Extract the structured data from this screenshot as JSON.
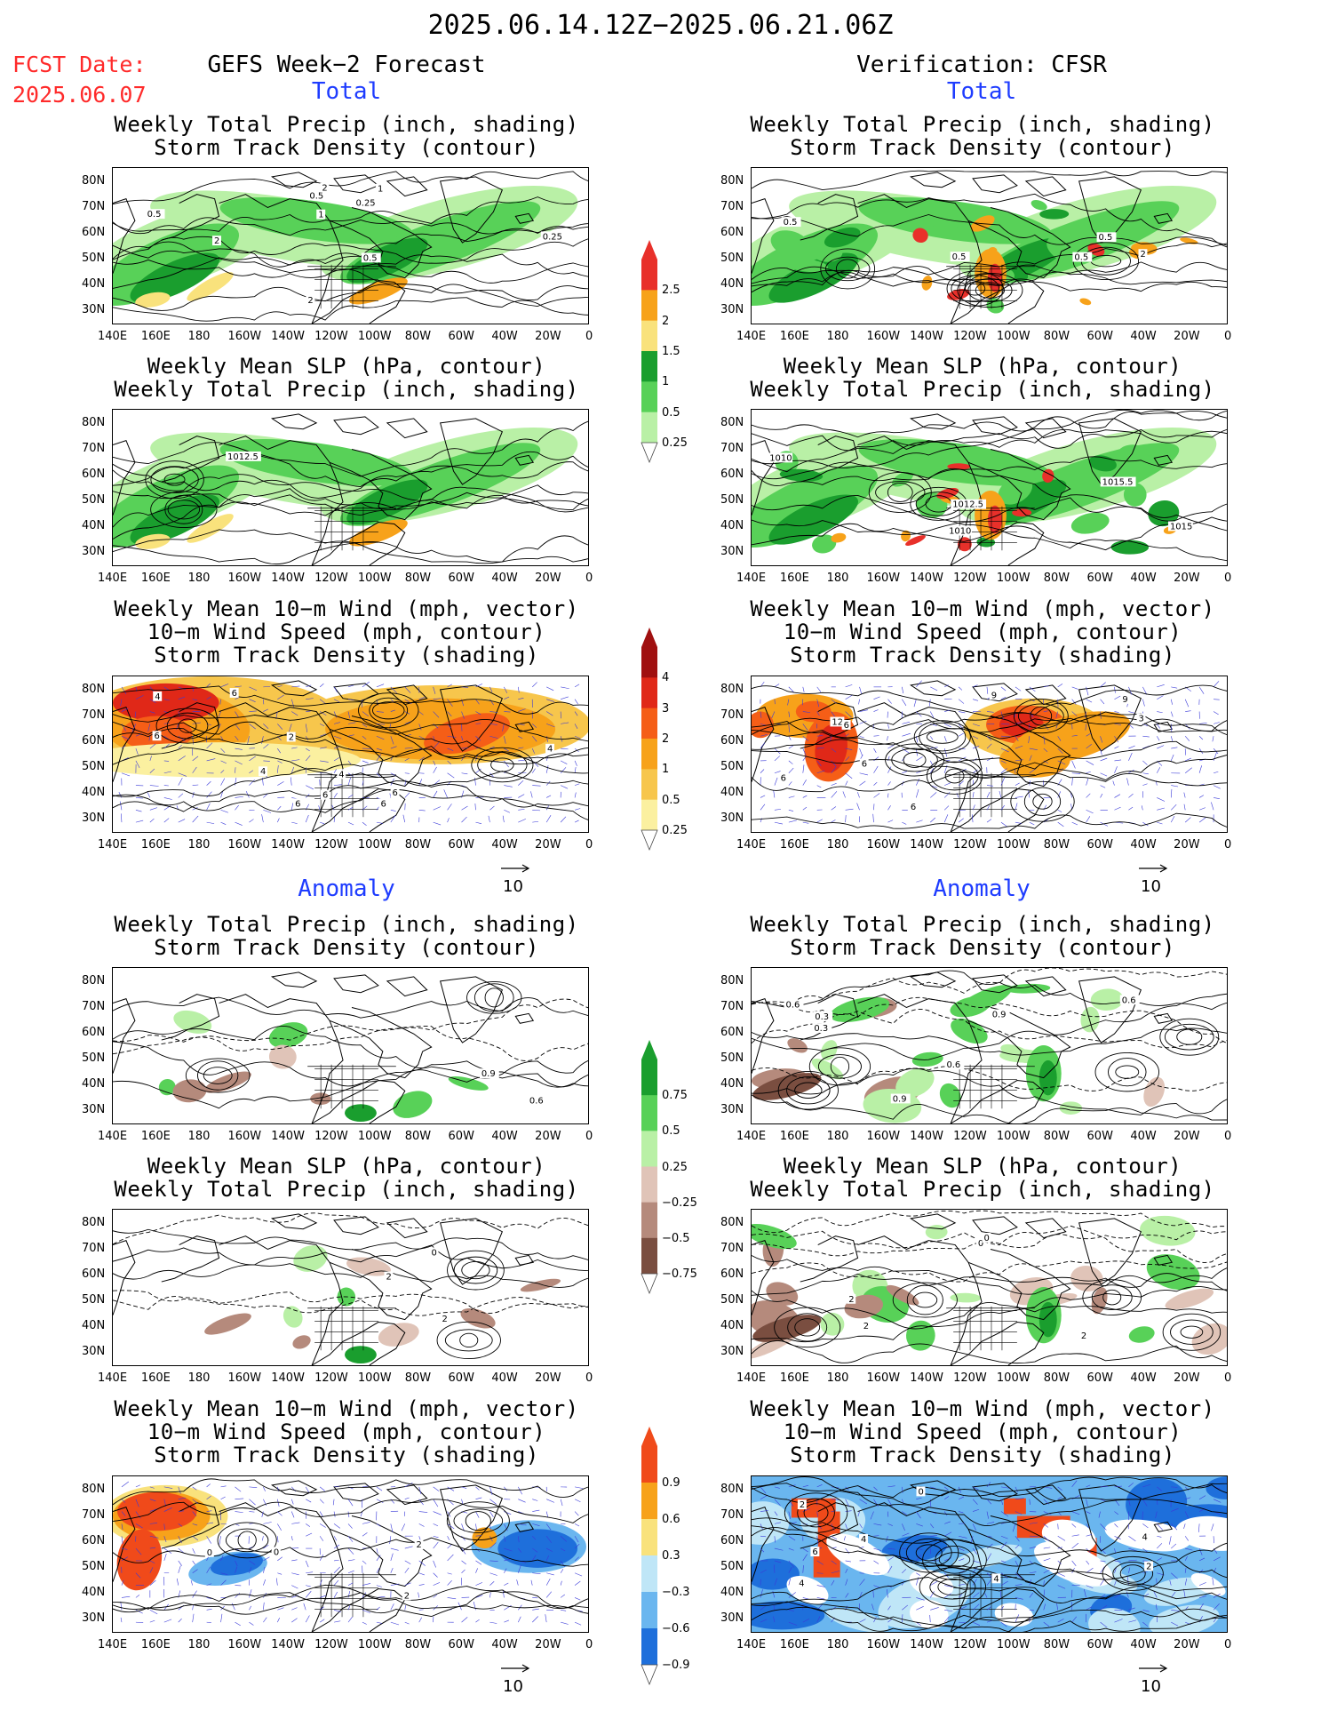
{
  "header": {
    "date_range": "2025.06.14.12Z−2025.06.21.06Z",
    "fcst_label": "FCST Date:",
    "fcst_date": "2025.06.07",
    "left_title": "GEFS Week−2 Forecast",
    "right_title": "Verification: CFSR"
  },
  "sections": {
    "total": "Total",
    "anomaly": "Anomaly"
  },
  "titles": {
    "precip_storm": [
      "Weekly Total Precip (inch, shading)",
      "Storm Track Density (contour)"
    ],
    "slp_precip": [
      "Weekly Mean SLP (hPa, contour)",
      "Weekly Total Precip (inch, shading)"
    ],
    "wind": [
      "Weekly Mean 10−m Wind (mph, vector)",
      "10−m Wind Speed (mph, contour)",
      "Storm Track Density (shading)"
    ]
  },
  "axes": {
    "lat_labels": [
      "80N",
      "70N",
      "60N",
      "50N",
      "40N",
      "30N"
    ],
    "lon_labels": [
      "140E",
      "160E",
      "180",
      "160W",
      "140W",
      "120W",
      "100W",
      "80W",
      "60W",
      "40W",
      "20W",
      "0"
    ]
  },
  "vector_ref": "10",
  "colorbars": {
    "precip_total": {
      "labels": [
        "2.5",
        "2",
        "1.5",
        "1",
        "0.5",
        "0.25"
      ],
      "colors": [
        "#e8302a",
        "#f7a21a",
        "#f9e27c",
        "#1a9e2e",
        "#58d158",
        "#b9f0a6"
      ]
    },
    "storm_total": {
      "labels": [
        "4",
        "3",
        "2",
        "1",
        "0.5",
        "0.25"
      ],
      "colors": [
        "#a01010",
        "#e02818",
        "#f55e17",
        "#f7a21a",
        "#f7c64c",
        "#fbf0a0"
      ]
    },
    "precip_anom": {
      "labels": [
        "0.75",
        "0.5",
        "0.25",
        "−0.25",
        "−0.5",
        "−0.75"
      ],
      "colors": [
        "#1a9e2e",
        "#58d158",
        "#b9f0a6",
        "#e0c4b8",
        "#b58a7c",
        "#7a4e40"
      ]
    },
    "storm_anom": {
      "labels": [
        "0.9",
        "0.6",
        "0.3",
        "−0.3",
        "−0.6",
        "−0.9"
      ],
      "colors": [
        "#f04a1a",
        "#f7a21a",
        "#f9e27c",
        "#bfe6f7",
        "#6ab6ef",
        "#1e6fdb"
      ]
    }
  },
  "contour_labels": {
    "p1": [
      "0.5",
      "1",
      "2",
      "0.25",
      "0.5",
      "2",
      "0.25",
      "2",
      "1",
      "0.5"
    ],
    "p2": [
      "0.5",
      "0.5",
      "0.5",
      "2",
      "0.5"
    ],
    "p3": [
      "1012.5"
    ],
    "p4": [
      "1010",
      "1015",
      "1010",
      "1015.5",
      "1012.5"
    ],
    "p5": [
      "2",
      "6",
      "4",
      "6",
      "6",
      "6",
      "4",
      "4",
      "6",
      "6",
      "4"
    ],
    "p6": [
      "6",
      "9",
      "12",
      "6",
      "3",
      "9",
      "6",
      "6"
    ],
    "p7": [
      "0.9",
      "0.6"
    ],
    "p8": [
      "0.6",
      "0.6",
      "0.3",
      "0.6",
      "0.9",
      "0.9",
      "0.3"
    ],
    "p9": [
      "2",
      "2",
      "0"
    ],
    "p10": [
      "2",
      "2",
      "2",
      "0",
      "0"
    ],
    "p11": [
      "2",
      "2",
      "0",
      "0"
    ],
    "p12": [
      "4",
      "4",
      "4",
      "6",
      "2",
      "2",
      "0",
      "4"
    ]
  }
}
